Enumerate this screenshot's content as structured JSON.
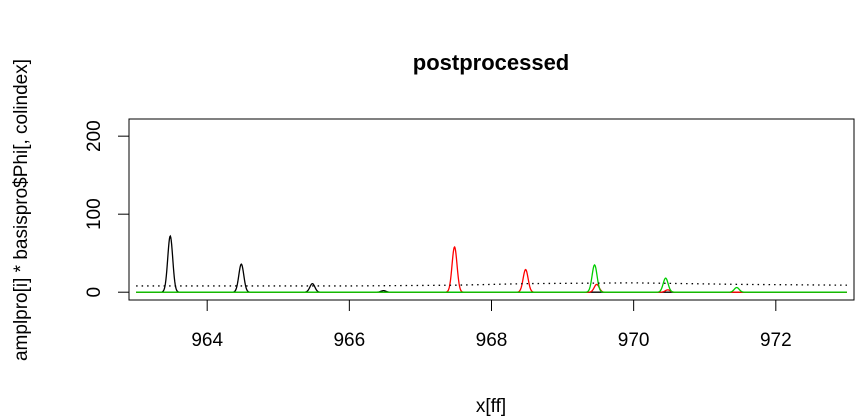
{
  "chart_data": {
    "type": "line",
    "title": "postprocessed",
    "xlabel": "x[ff]",
    "ylabel": "amplpro[i] * basispro$Phi[, colindex]",
    "xlim": [
      962.9,
      973.1
    ],
    "ylim": [
      -10,
      222
    ],
    "xticks": [
      964,
      966,
      968,
      970,
      972
    ],
    "yticks": [
      0,
      100,
      200
    ],
    "grid": false,
    "series": [
      {
        "color": "#000000",
        "style": "solid",
        "peaks": [
          {
            "x": 963.48,
            "y": 72
          },
          {
            "x": 964.48,
            "y": 36
          },
          {
            "x": 965.48,
            "y": 11
          },
          {
            "x": 966.48,
            "y": 2
          }
        ]
      },
      {
        "color": "#ff0000",
        "style": "solid",
        "peaks": [
          {
            "x": 967.48,
            "y": 58
          },
          {
            "x": 968.48,
            "y": 29
          },
          {
            "x": 969.48,
            "y": 10
          },
          {
            "x": 970.48,
            "y": 3
          }
        ]
      },
      {
        "color": "#00cd00",
        "style": "solid",
        "peaks": [
          {
            "x": 969.45,
            "y": 35
          },
          {
            "x": 970.45,
            "y": 18
          },
          {
            "x": 971.45,
            "y": 6
          }
        ]
      },
      {
        "color": "#000000",
        "style": "dotted",
        "points": [
          {
            "x": 963.0,
            "y": 8
          },
          {
            "x": 966.0,
            "y": 8
          },
          {
            "x": 967.5,
            "y": 9
          },
          {
            "x": 968.5,
            "y": 11
          },
          {
            "x": 970.0,
            "y": 12
          },
          {
            "x": 971.5,
            "y": 10
          },
          {
            "x": 973.0,
            "y": 9
          }
        ]
      }
    ]
  }
}
